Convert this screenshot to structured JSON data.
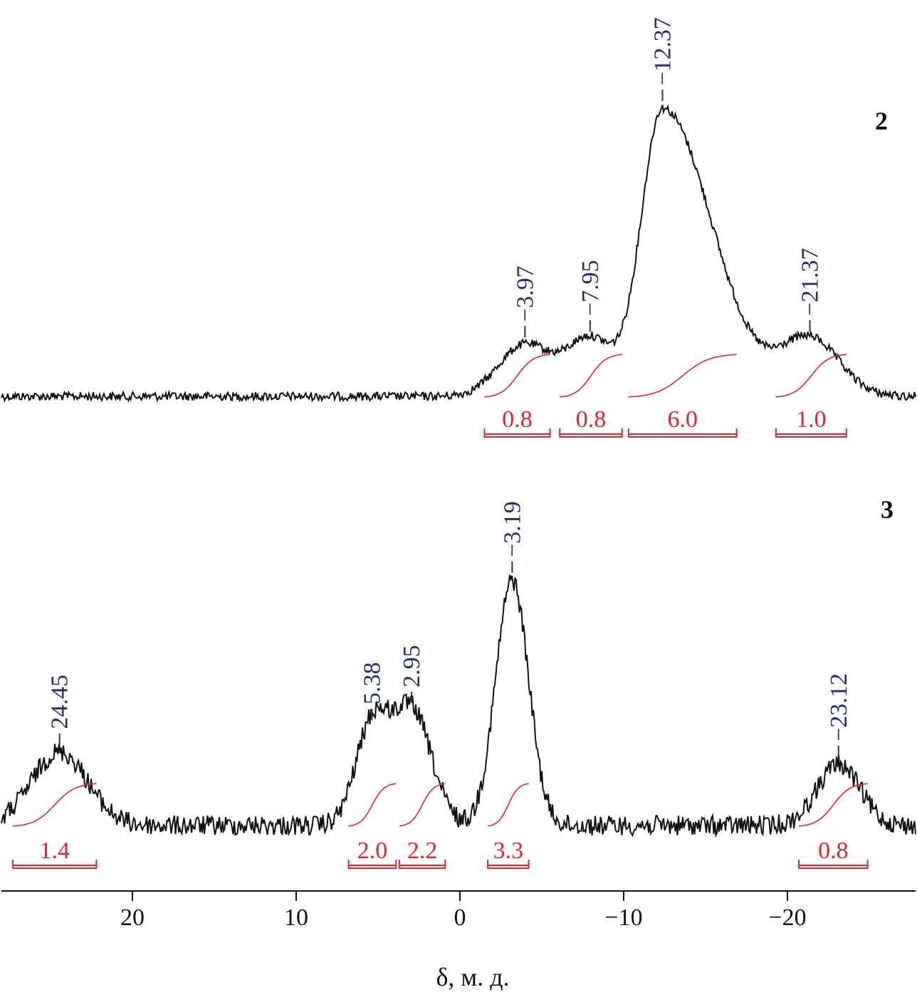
{
  "chart_data": {
    "type": "line",
    "xlabel": "δ, м. д.",
    "xlim": [
      28,
      -28
    ],
    "x_ticks": [
      {
        "value": 20,
        "label": "20"
      },
      {
        "value": 10,
        "label": "10"
      },
      {
        "value": 0,
        "label": "0"
      },
      {
        "value": -10,
        "label": "−10"
      },
      {
        "value": -20,
        "label": "−20"
      }
    ],
    "colors": {
      "spectrum": "#111111",
      "integral": "#e3242b",
      "peak_label": "#1f2f78"
    },
    "spectra": [
      {
        "id": "2",
        "peaks": [
          {
            "shift": -3.97,
            "label": "−3.97",
            "height": 0.18,
            "width": 1.6
          },
          {
            "shift": -7.95,
            "label": "−7.95",
            "height": 0.2,
            "width": 1.4
          },
          {
            "shift": -12.37,
            "label": "−12.37",
            "height": 1.0,
            "width": 1.3,
            "tail": 3.0
          },
          {
            "shift": -21.37,
            "label": "−21.37",
            "height": 0.2,
            "width": 1.8
          }
        ],
        "integrals": [
          {
            "from": -1.5,
            "to": -5.5,
            "value": "0.8"
          },
          {
            "from": -6.1,
            "to": -9.9,
            "value": "0.8"
          },
          {
            "from": -10.3,
            "to": -16.9,
            "value": "6.0"
          },
          {
            "from": -19.3,
            "to": -23.6,
            "value": "1.0"
          }
        ]
      },
      {
        "id": "3",
        "peaks": [
          {
            "shift": 24.45,
            "label": "24.45",
            "height": 0.3,
            "width": 1.7
          },
          {
            "shift": 5.38,
            "label": "5.38",
            "height": 0.4,
            "width": 1.0
          },
          {
            "shift": 2.95,
            "label": "2.95",
            "height": 0.47,
            "width": 1.2
          },
          {
            "shift": -3.19,
            "label": "−3.19",
            "height": 1.0,
            "width": 1.0
          },
          {
            "shift": -23.12,
            "label": "−23.12",
            "height": 0.25,
            "width": 1.3
          }
        ],
        "integrals": [
          {
            "from": 27.3,
            "to": 22.2,
            "value": "1.4"
          },
          {
            "from": 6.8,
            "to": 3.9,
            "value": "2.0"
          },
          {
            "from": 3.7,
            "to": 0.9,
            "value": "2.2"
          },
          {
            "from": -1.7,
            "to": -4.2,
            "value": "3.3"
          },
          {
            "from": -20.7,
            "to": -24.9,
            "value": "0.8"
          }
        ]
      }
    ]
  }
}
